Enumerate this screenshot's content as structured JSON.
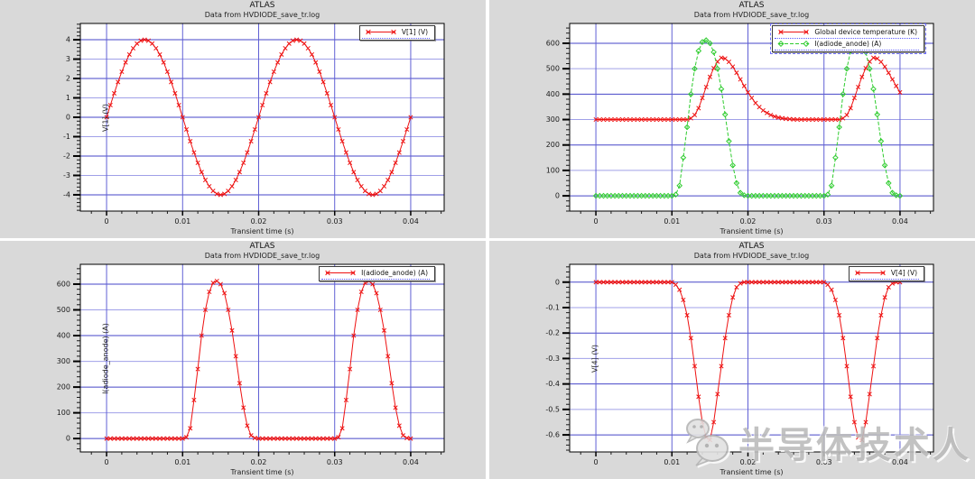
{
  "palette": {
    "panel_bg": "#d9d9d9",
    "plot_bg": "#ffffff",
    "plot_border": "#000000",
    "grid_major_dark": "#4646c8",
    "grid_major_light": "#a0a0e8",
    "grid_vertical": "#6060d4",
    "tick_color": "#1a1a1a",
    "series_red": "#ee1111",
    "series_green": "#2ecc2e",
    "watermark_gray": "#bcbcbc"
  },
  "watermark": {
    "text": "半导体技术人",
    "icon": "wechat-chat-bubbles-icon"
  },
  "chart_data": [
    {
      "position": "top-left",
      "type": "line",
      "title": "ATLAS",
      "subtitle": "Data from HVDIODE_save_tr.log",
      "xlabel": "Transient time (s)",
      "ylabel": "V[1] (V)",
      "grid": true,
      "legend_position": "top-right",
      "xlim": [
        -0.00345,
        0.0444
      ],
      "ylim": [
        -4.84,
        4.84
      ],
      "x_ticks": [
        0,
        0.01,
        0.02,
        0.03,
        0.04
      ],
      "x_tick_labels": [
        "0",
        "0.01",
        "0.02",
        "0.03",
        "0.04"
      ],
      "y_ticks": [
        -4,
        -3,
        -2,
        -1,
        0,
        1,
        2,
        3,
        4
      ],
      "y_tick_labels": [
        "-4",
        "-3",
        "-2",
        "-1",
        "0",
        "1",
        "2",
        "3",
        "4"
      ],
      "x_minor_step": 0.002,
      "y_minor_step": 0.2,
      "legend": [
        {
          "label": "V[1] (V)",
          "color": "#ee1111",
          "marker": "x",
          "dash": null
        }
      ],
      "series": [
        {
          "name": "V[1] (V)",
          "color": "#ee1111",
          "marker": "x",
          "dash": null,
          "x_start": 0,
          "x_step": 0.0005,
          "values": [
            0,
            0.63,
            1.24,
            1.82,
            2.35,
            2.83,
            3.24,
            3.56,
            3.8,
            3.95,
            4,
            3.95,
            3.8,
            3.56,
            3.24,
            2.83,
            2.35,
            1.82,
            1.24,
            0.63,
            0,
            -0.63,
            -1.24,
            -1.82,
            -2.35,
            -2.83,
            -3.24,
            -3.56,
            -3.8,
            -3.95,
            -4,
            -3.95,
            -3.8,
            -3.56,
            -3.24,
            -2.83,
            -2.35,
            -1.82,
            -1.24,
            -0.63,
            0,
            0.63,
            1.24,
            1.82,
            2.35,
            2.83,
            3.24,
            3.56,
            3.8,
            3.95,
            4,
            3.95,
            3.8,
            3.56,
            3.24,
            2.83,
            2.35,
            1.82,
            1.24,
            0.63,
            0,
            -0.63,
            -1.24,
            -1.82,
            -2.35,
            -2.83,
            -3.24,
            -3.56,
            -3.8,
            -3.95,
            -4,
            -3.95,
            -3.8,
            -3.56,
            -3.24,
            -2.83,
            -2.35,
            -1.82,
            -1.24,
            -0.63,
            0
          ]
        }
      ]
    },
    {
      "position": "top-right",
      "type": "line",
      "title": "ATLAS",
      "subtitle": "Data from HVDIODE_save_tr.log",
      "xlabel": "Transient time (s)",
      "ylabel": "",
      "grid": true,
      "legend_position": "top-right",
      "legend_selected": true,
      "xlim": [
        -0.00345,
        0.0444
      ],
      "ylim": [
        -60,
        678
      ],
      "x_ticks": [
        0,
        0.01,
        0.02,
        0.03,
        0.04
      ],
      "x_tick_labels": [
        "0",
        "0.01",
        "0.02",
        "0.03",
        "0.04"
      ],
      "y_ticks": [
        0,
        100,
        200,
        300,
        400,
        500,
        600
      ],
      "y_tick_labels": [
        "0",
        "100",
        "200",
        "300",
        "400",
        "500",
        "600"
      ],
      "x_minor_step": 0.002,
      "y_minor_step": 20,
      "legend": [
        {
          "label": "Global device temperature (K)",
          "color": "#ee1111",
          "marker": "x",
          "dash": null
        },
        {
          "label": "I(adiode_anode) (A)",
          "color": "#2ecc2e",
          "marker": "diamond",
          "dash": "4,2"
        }
      ],
      "series": [
        {
          "name": "Global device temperature (K)",
          "color": "#ee1111",
          "marker": "x",
          "dash": null,
          "x_start": 0,
          "x_step": 0.0005,
          "values": [
            300,
            300,
            300,
            300,
            300,
            300,
            300,
            300,
            300,
            300,
            300,
            300,
            300,
            300,
            300,
            300,
            300,
            300,
            300,
            300,
            300,
            300,
            300,
            300,
            300,
            305,
            318,
            345,
            385,
            428,
            468,
            502,
            528,
            543,
            540,
            527,
            508,
            484,
            458,
            432,
            407,
            385,
            365,
            349,
            336,
            326,
            318,
            312,
            308,
            305,
            303,
            302,
            301,
            300,
            300,
            300,
            300,
            300,
            300,
            300,
            300,
            300,
            300,
            300,
            300,
            305,
            318,
            345,
            385,
            428,
            468,
            502,
            528,
            543,
            540,
            527,
            508,
            484,
            458,
            432,
            407
          ]
        },
        {
          "name": "I(adiode_anode) (A)",
          "color": "#2ecc2e",
          "marker": "diamond",
          "dash": "4,2",
          "x_start": 0,
          "x_step": 0.0005,
          "values": [
            0,
            0,
            0,
            0,
            0,
            0,
            0,
            0,
            0,
            0,
            0,
            0,
            0,
            0,
            0,
            0,
            0,
            0,
            0,
            0,
            0,
            5,
            40,
            150,
            270,
            400,
            500,
            570,
            605,
            612,
            600,
            565,
            500,
            420,
            320,
            215,
            120,
            50,
            12,
            2,
            0,
            0,
            0,
            0,
            0,
            0,
            0,
            0,
            0,
            0,
            0,
            0,
            0,
            0,
            0,
            0,
            0,
            0,
            0,
            0,
            0,
            5,
            40,
            150,
            270,
            400,
            500,
            570,
            605,
            612,
            600,
            565,
            500,
            420,
            320,
            215,
            120,
            50,
            12,
            2,
            0
          ]
        }
      ]
    },
    {
      "position": "bottom-left",
      "type": "line",
      "title": "ATLAS",
      "subtitle": "Data from HVDIODE_save_tr.log",
      "xlabel": "Transient time (s)",
      "ylabel": "I(adiode_anode) (A)",
      "grid": true,
      "legend_position": "top-right",
      "xlim": [
        -0.00345,
        0.0444
      ],
      "ylim": [
        -52,
        677
      ],
      "x_ticks": [
        0,
        0.01,
        0.02,
        0.03,
        0.04
      ],
      "x_tick_labels": [
        "0",
        "0.01",
        "0.02",
        "0.03",
        "0.04"
      ],
      "y_ticks": [
        0,
        100,
        200,
        300,
        400,
        500,
        600
      ],
      "y_tick_labels": [
        "0",
        "100",
        "200",
        "300",
        "400",
        "500",
        "600"
      ],
      "x_minor_step": 0.002,
      "y_minor_step": 20,
      "legend": [
        {
          "label": "I(adiode_anode) (A)",
          "color": "#ee1111",
          "marker": "x",
          "dash": null
        }
      ],
      "series": [
        {
          "name": "I(adiode_anode) (A)",
          "color": "#ee1111",
          "marker": "x",
          "dash": null,
          "x_start": 0,
          "x_step": 0.0005,
          "values": [
            0,
            0,
            0,
            0,
            0,
            0,
            0,
            0,
            0,
            0,
            0,
            0,
            0,
            0,
            0,
            0,
            0,
            0,
            0,
            0,
            0,
            5,
            40,
            150,
            270,
            400,
            500,
            570,
            605,
            612,
            600,
            565,
            500,
            420,
            320,
            215,
            120,
            50,
            12,
            2,
            0,
            0,
            0,
            0,
            0,
            0,
            0,
            0,
            0,
            0,
            0,
            0,
            0,
            0,
            0,
            0,
            0,
            0,
            0,
            0,
            0,
            5,
            40,
            150,
            270,
            400,
            500,
            570,
            605,
            612,
            600,
            565,
            500,
            420,
            320,
            215,
            120,
            50,
            12,
            2,
            0
          ]
        }
      ]
    },
    {
      "position": "bottom-right",
      "type": "line",
      "title": "ATLAS",
      "subtitle": "Data from HVDIODE_save_tr.log",
      "xlabel": "Transient time (s)",
      "ylabel": "V[4] (V)",
      "grid": true,
      "legend_position": "top-right",
      "xlim": [
        -0.00345,
        0.0444
      ],
      "ylim": [
        -0.667,
        0.07
      ],
      "x_ticks": [
        0,
        0.01,
        0.02,
        0.03,
        0.04
      ],
      "x_tick_labels": [
        "0",
        "0.01",
        "0.02",
        "0.03",
        "0.04"
      ],
      "y_ticks": [
        -0.6,
        -0.5,
        -0.4,
        -0.3,
        -0.2,
        -0.1,
        0
      ],
      "y_tick_labels": [
        "-0.6",
        "-0.5",
        "-0.4",
        "-0.3",
        "-0.2",
        "-0.1",
        "0"
      ],
      "x_minor_step": 0.002,
      "y_minor_step": 0.02,
      "legend": [
        {
          "label": "V[4] (V)",
          "color": "#ee1111",
          "marker": "x",
          "dash": null
        }
      ],
      "series": [
        {
          "name": "V[4] (V)",
          "color": "#ee1111",
          "marker": "x",
          "dash": null,
          "x_start": 0,
          "x_step": 0.0005,
          "values": [
            0,
            0,
            0,
            0,
            0,
            0,
            0,
            0,
            0,
            0,
            0,
            0,
            0,
            0,
            0,
            0,
            0,
            0,
            0,
            0,
            0,
            -0.01,
            -0.03,
            -0.07,
            -0.13,
            -0.22,
            -0.33,
            -0.45,
            -0.55,
            -0.61,
            -0.62,
            -0.55,
            -0.44,
            -0.33,
            -0.22,
            -0.13,
            -0.06,
            -0.02,
            -0.005,
            0,
            0,
            0,
            0,
            0,
            0,
            0,
            0,
            0,
            0,
            0,
            0,
            0,
            0,
            0,
            0,
            0,
            0,
            0,
            0,
            0,
            0,
            -0.01,
            -0.03,
            -0.07,
            -0.13,
            -0.22,
            -0.33,
            -0.45,
            -0.55,
            -0.61,
            -0.62,
            -0.55,
            -0.44,
            -0.33,
            -0.22,
            -0.13,
            -0.06,
            -0.02,
            -0.005,
            0,
            0
          ]
        }
      ]
    }
  ]
}
